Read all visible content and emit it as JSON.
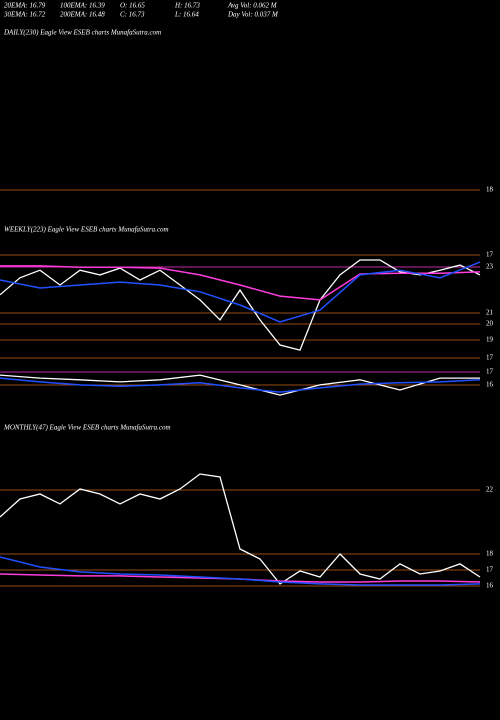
{
  "header": {
    "row1": [
      "20EMA: 16.79",
      "100EMA: 16.39",
      "O: 16.65",
      "H: 16.73",
      "Avg Vol: 0.062  M"
    ],
    "row2": [
      "30EMA: 16.72",
      "200EMA: 16.48",
      "C: 16.73",
      "L: 16.64",
      "Day Vol: 0.037  M"
    ]
  },
  "chart_data": [
    {
      "type": "line",
      "title": "DAILY(230) Eagle  View  ESEB charts MunafaSutra.com",
      "levels": [
        18
      ],
      "series": []
    },
    {
      "type": "line",
      "title": "WEEKLY(223) Eagle  View  ESEB charts MunafaSutra.com",
      "levels": [
        17,
        23,
        21,
        20,
        19,
        17,
        17,
        16
      ],
      "ylim": [
        14,
        18
      ],
      "series": [
        {
          "color": "#ffffff",
          "values": [
            16.71,
            17.11,
            17.29,
            16.94,
            17.29,
            17.18,
            17.34,
            17.06,
            17.29,
            16.94,
            16.59,
            16.12,
            16.82,
            16.12,
            15.53,
            15.41,
            16.59,
            17.18,
            17.53,
            17.53,
            17.25,
            17.18,
            17.29,
            17.41,
            17.18
          ]
        },
        {
          "color": "#ff3cdc",
          "values": [
            17.39,
            17.39,
            17.36,
            17.36,
            17.34,
            17.18,
            16.94,
            16.68,
            16.59,
            17.2,
            17.22,
            17.22,
            17.25
          ]
        },
        {
          "color": "#2050ff",
          "values": [
            17.06,
            16.87,
            16.94,
            17.01,
            16.94,
            16.78,
            16.47,
            16.07,
            16.35,
            17.18,
            17.29,
            17.11,
            17.48
          ]
        },
        {
          "color": "#ffffff",
          "values": [
            14.82,
            14.75,
            14.71,
            14.66,
            14.71,
            14.82,
            14.59,
            14.35,
            14.59,
            14.71,
            14.47,
            14.75,
            14.75
          ]
        },
        {
          "color": "#2050ff",
          "values": [
            14.75,
            14.66,
            14.59,
            14.56,
            14.59,
            14.64,
            14.52,
            14.42,
            14.52,
            14.61,
            14.64,
            14.66,
            14.71
          ]
        }
      ]
    },
    {
      "type": "line",
      "title": "MONTHLY(47) Eagle  View  ESEB charts MunafaSutra.com",
      "levels": [
        22,
        18,
        17,
        16
      ],
      "ylim": [
        14.5,
        26
      ],
      "series": [
        {
          "color": "#ffffff",
          "values": [
            20.31,
            21.44,
            21.75,
            21.13,
            22.06,
            21.75,
            21.13,
            21.75,
            21.44,
            22.06,
            23,
            22.81,
            18.31,
            17.69,
            16.13,
            16.94,
            16.56,
            18,
            16.75,
            16.44,
            17.38,
            16.75,
            16.94,
            17.38,
            16.56
          ]
        },
        {
          "color": "#ff3cdc",
          "values": [
            16.75,
            16.69,
            16.63,
            16.63,
            16.56,
            16.5,
            16.44,
            16.31,
            16.25,
            16.25,
            16.31,
            16.31,
            16.25
          ]
        },
        {
          "color": "#2050ff",
          "values": [
            17.81,
            17.19,
            16.88,
            16.75,
            16.69,
            16.56,
            16.44,
            16.25,
            16.13,
            16.06,
            16.06,
            16.06,
            16.13
          ]
        }
      ]
    }
  ]
}
